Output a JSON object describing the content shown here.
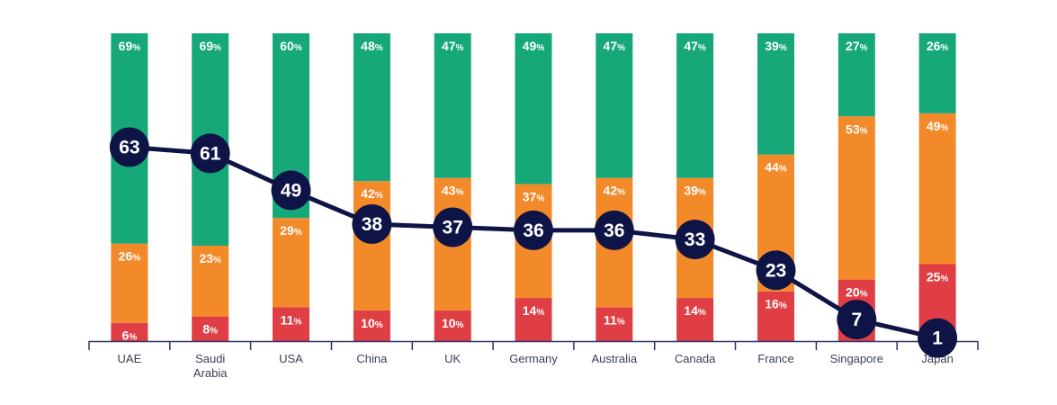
{
  "chart_data": {
    "type": "bar",
    "stacked": true,
    "categories": [
      "UAE",
      "Saudi Arabia",
      "USA",
      "China",
      "UK",
      "Germany",
      "Australia",
      "Canada",
      "France",
      "Singapore",
      "Japan"
    ],
    "category_lines": [
      [
        "UAE"
      ],
      [
        "Saudi",
        "Arabia"
      ],
      [
        "USA"
      ],
      [
        "China"
      ],
      [
        "UK"
      ],
      [
        "Germany"
      ],
      [
        "Australia"
      ],
      [
        "Canada"
      ],
      [
        "France"
      ],
      [
        "Singapore"
      ],
      [
        "Japan"
      ]
    ],
    "series": [
      {
        "color": "#e03e45",
        "values": [
          6,
          8,
          11,
          10,
          10,
          14,
          11,
          14,
          16,
          20,
          25
        ]
      },
      {
        "color": "#f28a2a",
        "values": [
          26,
          23,
          29,
          42,
          43,
          37,
          42,
          39,
          44,
          53,
          49
        ]
      },
      {
        "color": "#17a87a",
        "values": [
          69,
          69,
          60,
          48,
          47,
          49,
          47,
          47,
          39,
          27,
          26
        ]
      }
    ],
    "line_series": {
      "color": "#0f1446",
      "values": [
        63,
        61,
        49,
        38,
        37,
        36,
        36,
        33,
        23,
        7,
        1
      ]
    },
    "value_suffix": "%",
    "ylim": [
      0,
      100
    ],
    "grid": false,
    "legend": "none"
  }
}
